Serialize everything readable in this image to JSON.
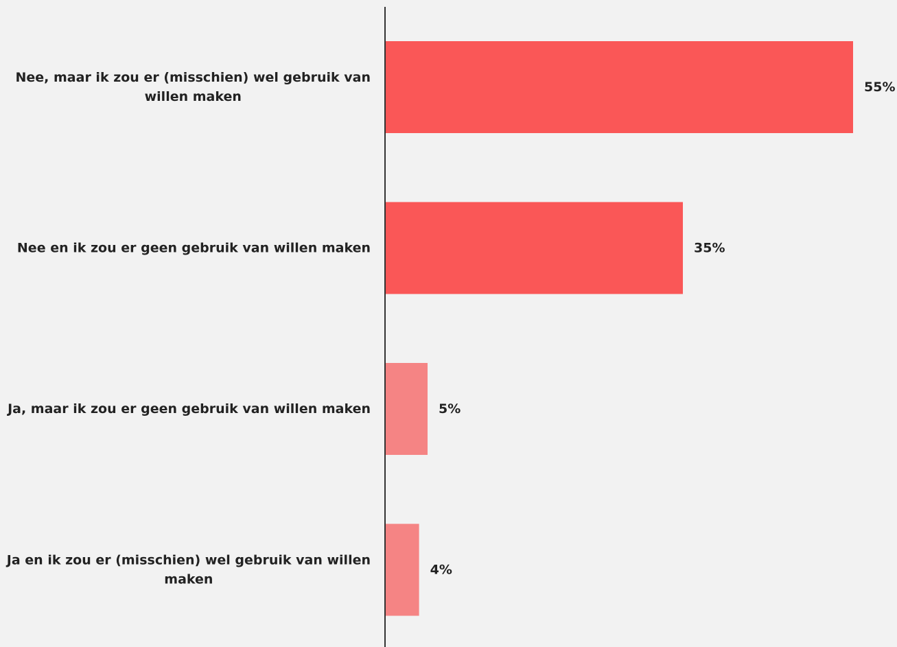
{
  "chart_data": {
    "type": "bar",
    "orientation": "horizontal",
    "categories": [
      "Nee, maar ik zou er (misschien) wel gebruik van willen maken",
      "Nee en ik zou er geen gebruik van willen maken",
      "Ja, maar ik zou er geen gebruik van willen maken",
      "Ja en ik zou er (misschien) wel gebruik van willen maken"
    ],
    "values": [
      55,
      35,
      5,
      4
    ],
    "value_labels": [
      "55%",
      "35%",
      "5%",
      "4%"
    ],
    "unit": "%",
    "bar_colors": [
      "#fa5757",
      "#fa5757",
      "#f58484",
      "#f58484"
    ],
    "xlim": [
      0,
      55
    ],
    "grid": false,
    "legend": "none"
  }
}
